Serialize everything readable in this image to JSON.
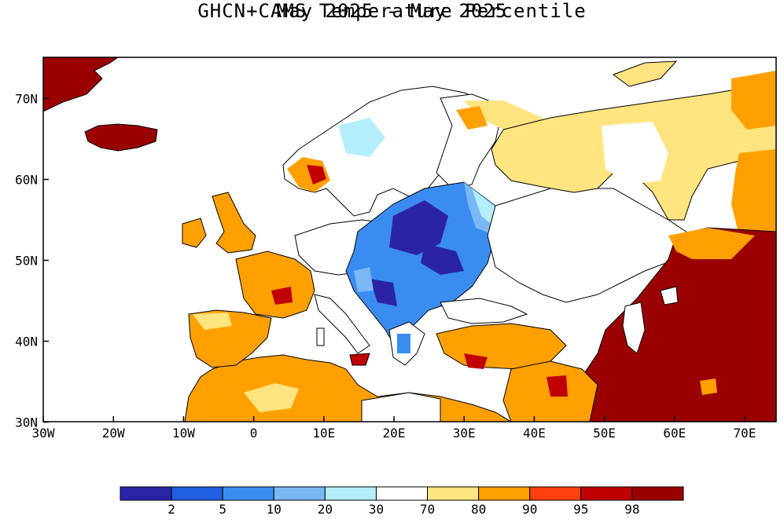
{
  "title": "GHCN+CAMS Temperature Percentile",
  "subtitle": "May 2025 - May 2025",
  "x_ticks": [
    "30W",
    "20W",
    "10W",
    "0",
    "10E",
    "20E",
    "30E",
    "40E",
    "50E",
    "60E",
    "70E"
  ],
  "y_ticks": [
    "70N",
    "60N",
    "50N",
    "40N",
    "30N"
  ],
  "legend": {
    "labels": [
      "2",
      "5",
      "10",
      "20",
      "30",
      "70",
      "80",
      "90",
      "95",
      "98"
    ],
    "colors": [
      "#2b23a6",
      "#1f5fe0",
      "#3a8cf0",
      "#7ab8f5",
      "#b3eefa",
      "#ffffff",
      "#ffe480",
      "#ffa000",
      "#ff4010",
      "#c00000",
      "#9b0000"
    ]
  },
  "map_colors": {
    "ocean": "#ffffff",
    "border": "#000000"
  }
}
